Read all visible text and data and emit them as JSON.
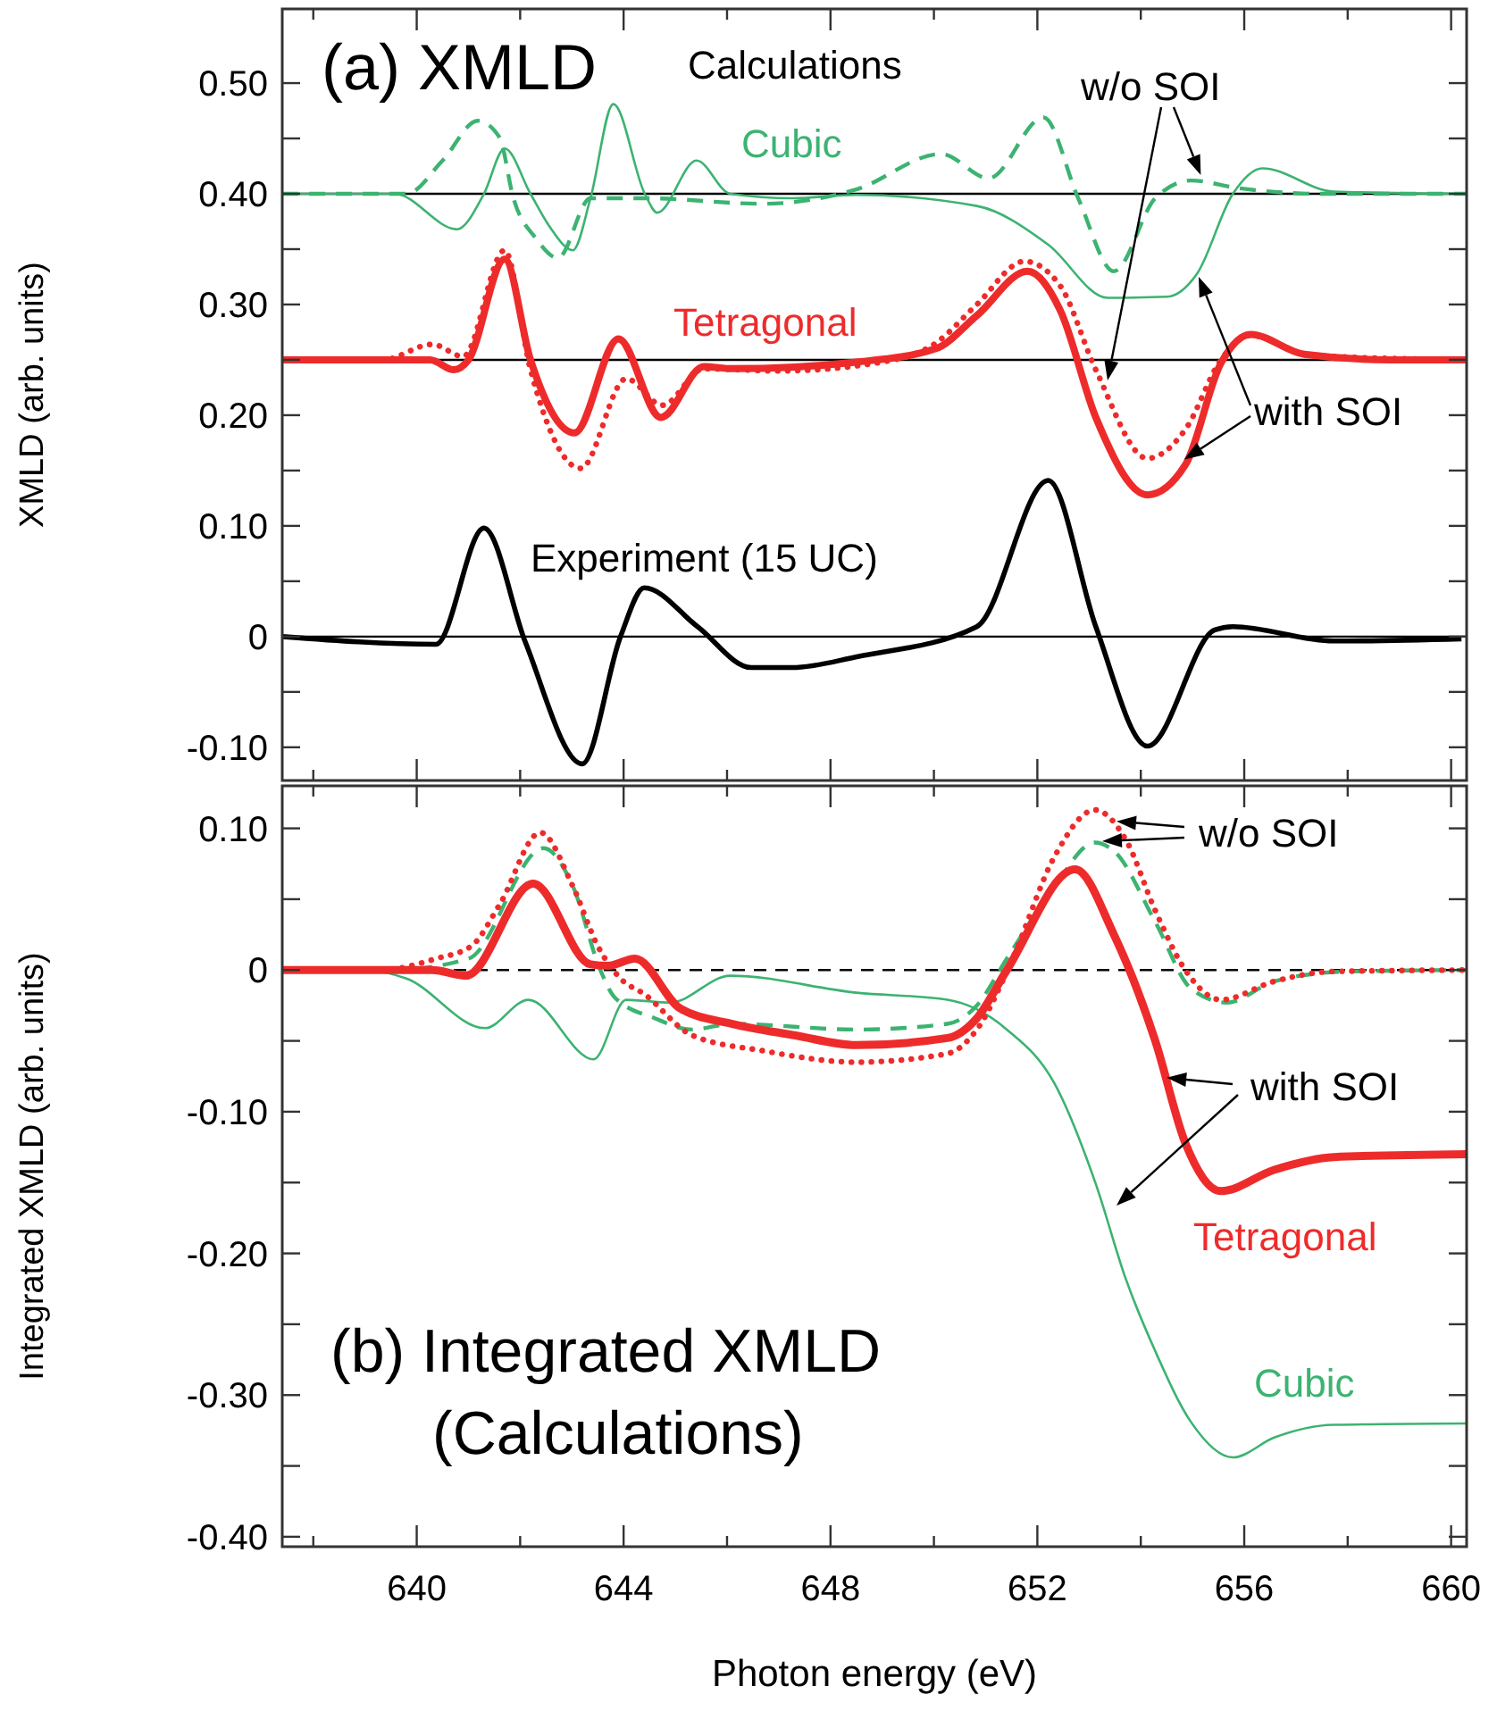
{
  "chart_data": [
    {
      "type": "line",
      "ylabel": "XMLD (arb. units)",
      "annotations": [
        "(a) XMLD",
        "Calculations",
        "Cubic",
        "Tetragonal",
        "Experiment (15 UC)",
        {
          "text": "w/o SOI",
          "x": 655.16,
          "y": 0.417
        },
        {
          "text": "with SOI",
          "x": 654.84,
          "y": 0.16
        }
      ],
      "xlim": [
        637.4,
        660.3
      ],
      "ylim": [
        -0.13,
        0.567
      ],
      "tick_labels": "y",
      "xticks": [
        {
          "value": 638,
          "label": null
        },
        640,
        {
          "value": 642,
          "label": null
        },
        644,
        {
          "value": 646,
          "label": null
        },
        648,
        {
          "value": 650,
          "label": null
        },
        652,
        {
          "value": 654,
          "label": null
        },
        656,
        {
          "value": 658,
          "label": null
        },
        660
      ],
      "yticks": [
        {
          "value": -0.1,
          "label": "-0.10"
        },
        {
          "value": -0.05,
          "label": null
        },
        0,
        {
          "value": 0.05,
          "label": null
        },
        {
          "value": 0.1,
          "label": "0.10"
        },
        {
          "value": 0.15,
          "label": null
        },
        {
          "value": 0.2,
          "label": "0.20"
        },
        {
          "value": 0.25,
          "label": null
        },
        {
          "value": 0.3,
          "label": "0.30"
        },
        {
          "value": 0.35,
          "label": null
        },
        {
          "value": 0.4,
          "label": "0.40"
        },
        {
          "value": 0.45,
          "label": null
        },
        {
          "value": 0.5,
          "label": "0.50"
        }
      ],
      "ref_lines": [
        {
          "axis": "y",
          "value": 0.4,
          "color": "#000000"
        },
        {
          "axis": "y",
          "value": 0.25,
          "color": "#000000"
        },
        {
          "axis": "y",
          "value": 0,
          "color": "#000000"
        }
      ],
      "series": [
        {
          "color": "#3cb371",
          "line_style": "dashed",
          "x": [
            637.4,
            639.8,
            640.5,
            641.18,
            641.6,
            641.87,
            642.3,
            642.73,
            643.36,
            644.4,
            646.7,
            648.5,
            650.14,
            651.06,
            652.12,
            652.79,
            653.48,
            654.28,
            654.97,
            655.9,
            657.5,
            660.3
          ],
          "values": [
            0.4,
            0.4,
            0.43,
            0.466,
            0.451,
            0.396,
            0.36,
            0.342,
            0.396,
            0.396,
            0.391,
            0.404,
            0.436,
            0.414,
            0.469,
            0.396,
            0.33,
            0.396,
            0.412,
            0.405,
            0.4,
            0.4
          ]
        },
        {
          "color": "#3cb371",
          "line_style": "solid",
          "x": [
            637.4,
            639.57,
            640.78,
            641.3,
            641.7,
            642.2,
            642.56,
            643.02,
            643.36,
            643.8,
            644.41,
            644.65,
            645.41,
            646.06,
            647.26,
            648.5,
            650.83,
            652.21,
            653.36,
            654.51,
            655.09,
            655.78,
            656.35,
            657.73,
            660.3
          ],
          "values": [
            0.4,
            0.4,
            0.368,
            0.4,
            0.441,
            0.4,
            0.371,
            0.349,
            0.396,
            0.481,
            0.4,
            0.383,
            0.43,
            0.4,
            0.396,
            0.399,
            0.389,
            0.354,
            0.306,
            0.307,
            0.328,
            0.4,
            0.423,
            0.402,
            0.4
          ]
        },
        {
          "color": "#ee2b2b",
          "line_style": "dotted",
          "x": [
            637.4,
            639.34,
            640.3,
            640.9,
            641.7,
            642.2,
            643.17,
            644.05,
            644.75,
            645.55,
            647.0,
            649.0,
            650.03,
            650.83,
            651.75,
            652.44,
            653.13,
            654.13,
            654.86,
            655.55,
            656.12,
            657.3,
            660.3
          ],
          "values": [
            0.25,
            0.25,
            0.264,
            0.253,
            0.349,
            0.241,
            0.152,
            0.233,
            0.209,
            0.242,
            0.24,
            0.248,
            0.265,
            0.3,
            0.339,
            0.317,
            0.241,
            0.161,
            0.187,
            0.25,
            0.272,
            0.254,
            0.25
          ]
        },
        {
          "color": "#ee2b2b",
          "line_style": "solid",
          "x": [
            637.4,
            640.26,
            640.72,
            641.0,
            641.7,
            642.2,
            643.05,
            643.9,
            644.72,
            645.55,
            646.1,
            648.5,
            650.03,
            650.83,
            651.81,
            652.44,
            653.13,
            654.13,
            654.86,
            655.55,
            656.12,
            657.16,
            658.8,
            660.3
          ],
          "values": [
            0.25,
            0.25,
            0.241,
            0.25,
            0.341,
            0.25,
            0.184,
            0.269,
            0.198,
            0.244,
            0.242,
            0.248,
            0.26,
            0.29,
            0.33,
            0.295,
            0.198,
            0.128,
            0.155,
            0.247,
            0.273,
            0.255,
            0.25,
            0.25
          ]
        },
        {
          "color": "#000000",
          "line_style": "solid",
          "x": [
            637.4,
            640.37,
            641.3,
            642.1,
            643.2,
            643.94,
            644.4,
            645.43,
            646.47,
            647.26,
            648.53,
            650.83,
            652.21,
            653.13,
            654.13,
            655.43,
            655.78,
            657.73,
            660.2
          ],
          "values": [
            0,
            -0.007,
            0.098,
            -0.005,
            -0.115,
            0,
            0.044,
            0.009,
            -0.028,
            -0.028,
            -0.018,
            0.009,
            0.141,
            0.009,
            -0.099,
            0.006,
            0.009,
            -0.004,
            -0.002
          ]
        }
      ]
    },
    {
      "type": "line",
      "xlabel": "Photon energy (eV)",
      "ylabel": "Integrated XMLD (arb. units)",
      "annotations": [
        {
          "text": "w/o SOI",
          "x": 653.53,
          "y": 0.105
        },
        {
          "text": "with SOI",
          "x": 654.5,
          "y": -0.076
        },
        "Tetragonal",
        "Cubic",
        "(b) Integrated XMLD",
        "(Calculations)"
      ],
      "xlim": [
        637.4,
        660.3
      ],
      "ylim": [
        -0.407,
        0.13
      ],
      "xticks": [
        {
          "value": 638,
          "label": null
        },
        640,
        {
          "value": 642,
          "label": null
        },
        644,
        {
          "value": 646,
          "label": null
        },
        648,
        {
          "value": 650,
          "label": null
        },
        652,
        {
          "value": 654,
          "label": null
        },
        656,
        {
          "value": 658,
          "label": null
        },
        660
      ],
      "yticks": [
        {
          "value": -0.4,
          "label": "-0.40"
        },
        {
          "value": -0.35,
          "label": null
        },
        {
          "value": -0.3,
          "label": "-0.30"
        },
        {
          "value": -0.25,
          "label": null
        },
        {
          "value": -0.2,
          "label": "-0.20"
        },
        {
          "value": -0.15,
          "label": null
        },
        {
          "value": -0.1,
          "label": "-0.10"
        },
        {
          "value": -0.05,
          "label": null
        },
        0,
        {
          "value": 0.05,
          "label": null
        },
        {
          "value": 0.1,
          "label": "0.10"
        }
      ],
      "ref_lines": [
        {
          "axis": "y",
          "value": 0,
          "color": "#000000",
          "line_style": "dashed"
        }
      ],
      "series": [
        {
          "color": "#3cb371",
          "line_style": "dashed",
          "x": [
            637.4,
            639.5,
            641.0,
            642.45,
            643.02,
            643.55,
            643.82,
            644.6,
            645.32,
            646.1,
            648.5,
            650.26,
            650.83,
            651.41,
            652.33,
            653.11,
            653.48,
            654.28,
            654.97,
            655.66,
            656.58,
            658.0,
            660.3
          ],
          "values": [
            0,
            0,
            0.008,
            0.086,
            0.059,
            0,
            -0.019,
            -0.034,
            -0.042,
            -0.038,
            -0.042,
            -0.038,
            -0.025,
            0.008,
            0.059,
            0.09,
            0.084,
            0.034,
            -0.013,
            -0.023,
            -0.008,
            -0.001,
            0
          ]
        },
        {
          "color": "#3cb371",
          "line_style": "solid",
          "x": [
            637.4,
            639.0,
            639.8,
            641.32,
            642.16,
            643.42,
            644.05,
            644.9,
            646.06,
            648.5,
            650.26,
            651.41,
            652.33,
            653.13,
            653.71,
            654.28,
            654.97,
            655.78,
            656.58,
            657.73,
            660.3
          ],
          "values": [
            0,
            0,
            -0.006,
            -0.041,
            -0.021,
            -0.063,
            -0.021,
            -0.023,
            -0.004,
            -0.016,
            -0.021,
            -0.042,
            -0.08,
            -0.151,
            -0.218,
            -0.269,
            -0.319,
            -0.344,
            -0.33,
            -0.321,
            -0.32
          ]
        },
        {
          "color": "#ee2b2b",
          "line_style": "dotted",
          "x": [
            637.4,
            639.3,
            640.37,
            641.06,
            641.6,
            642.39,
            643.02,
            643.5,
            643.94,
            644.4,
            645.32,
            646.7,
            648.5,
            650.26,
            650.83,
            651.52,
            652.33,
            653.11,
            653.71,
            654.28,
            654.86,
            655.55,
            656.58,
            657.73,
            660.3
          ],
          "values": [
            0,
            0,
            0.008,
            0.017,
            0.046,
            0.097,
            0.059,
            0.017,
            -0.006,
            -0.017,
            -0.046,
            -0.057,
            -0.065,
            -0.059,
            -0.042,
            0.008,
            0.08,
            0.113,
            0.092,
            0.042,
            0,
            -0.021,
            -0.008,
            -0.001,
            0
          ]
        },
        {
          "color": "#ee2b2b",
          "line_style": "solid",
          "x": [
            637.4,
            640.3,
            640.95,
            642.25,
            643.36,
            643.7,
            644.22,
            645.09,
            646.1,
            647.3,
            648.5,
            650.26,
            650.83,
            651.41,
            652.73,
            653.48,
            654.28,
            654.86,
            655.55,
            656.58,
            657.73,
            660.3
          ],
          "values": [
            0,
            0,
            -0.004,
            0.061,
            0.004,
            0.003,
            0.008,
            -0.027,
            -0.038,
            -0.046,
            -0.053,
            -0.048,
            -0.034,
            0,
            0.071,
            0.025,
            -0.05,
            -0.122,
            -0.156,
            -0.141,
            -0.132,
            -0.13
          ]
        }
      ]
    }
  ]
}
